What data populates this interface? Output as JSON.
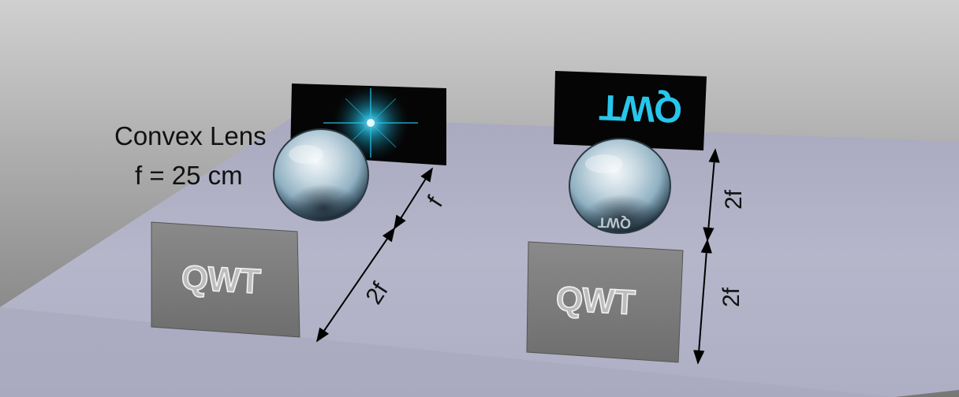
{
  "lens_caption": {
    "line1": "Convex Lens",
    "line2": "f = 25 cm"
  },
  "left_setup": {
    "object_card_text": "QWT",
    "dim_object_to_lens": "2f",
    "dim_lens_to_screen": "f"
  },
  "right_setup": {
    "object_card_text": "QWT",
    "image_card_text": "QWT",
    "dim_object_to_lens": "2f",
    "dim_lens_to_screen": "2f"
  },
  "colors": {
    "background_top": "#cdcdcd",
    "background_bottom": "#7e7e7e",
    "table": "#b1b1c6",
    "card": "#7a7a7a",
    "screen": "#050505",
    "image_glow": "#27c6ec"
  }
}
